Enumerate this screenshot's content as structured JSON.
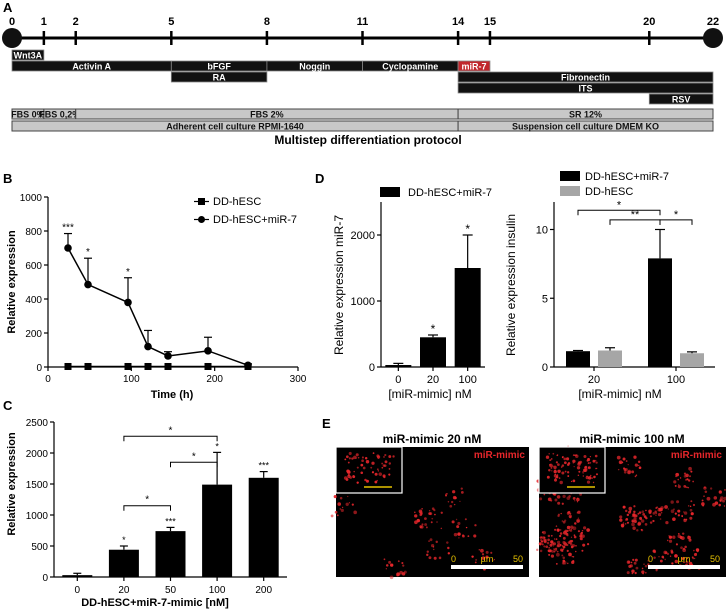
{
  "panel_letters": [
    "A",
    "B",
    "C",
    "D",
    "E"
  ],
  "protocol": {
    "title": "Multistep differentiation protocol",
    "timeline_days": [
      0,
      1,
      2,
      5,
      8,
      11,
      14,
      15,
      20,
      22
    ],
    "factor_bars": [
      {
        "label": "Wnt3A",
        "start": 0,
        "end": 1,
        "row": 0,
        "color": "#111111"
      },
      {
        "label": "Activin A",
        "start": 0,
        "end": 5,
        "row": 1,
        "color": "#111111"
      },
      {
        "label": "bFGF",
        "start": 5,
        "end": 8,
        "row": 1,
        "color": "#111111"
      },
      {
        "label": "RA",
        "start": 5,
        "end": 8,
        "row": 2,
        "color": "#111111"
      },
      {
        "label": "Noggin",
        "start": 8,
        "end": 11,
        "row": 1,
        "color": "#111111"
      },
      {
        "label": "Cyclopamine",
        "start": 11,
        "end": 14,
        "row": 1,
        "color": "#111111"
      },
      {
        "label": "miR-7",
        "start": 14,
        "end": 15,
        "row": 1,
        "color": "#c1272d"
      },
      {
        "label": "Fibronectin",
        "start": 14,
        "end": 22,
        "row": 2,
        "color": "#111111"
      },
      {
        "label": "ITS",
        "start": 14,
        "end": 22,
        "row": 3,
        "color": "#111111"
      },
      {
        "label": "RSV",
        "start": 20,
        "end": 22,
        "row": 4,
        "color": "#111111"
      }
    ],
    "media_bars": [
      {
        "label": "FBS 0%",
        "start": 0,
        "end": 1,
        "row": 0
      },
      {
        "label": "FBS 0,2%",
        "start": 1,
        "end": 2,
        "row": 0
      },
      {
        "label": "FBS 2%",
        "start": 2,
        "end": 14,
        "row": 0
      },
      {
        "label": "SR 12%",
        "start": 14,
        "end": 22,
        "row": 0
      },
      {
        "label": "Adherent cell culture RPMI-1640",
        "start": 0,
        "end": 14,
        "row": 1
      },
      {
        "label": "Suspension cell culture DMEM KO",
        "start": 14,
        "end": 22,
        "row": 1
      }
    ]
  },
  "chart_data": [
    {
      "panel": "B",
      "type": "line",
      "xlabel": "Time (h)",
      "ylabel": "Relative expression",
      "xlim": [
        0,
        300
      ],
      "ylim": [
        0,
        1000
      ],
      "xticks": [
        0,
        100,
        200,
        300
      ],
      "yticks": [
        0,
        200,
        400,
        600,
        800,
        1000
      ],
      "legend_position": "top-right",
      "series": [
        {
          "name": "DD-hESC",
          "marker": "square",
          "x": [
            24,
            48,
            96,
            120,
            144,
            192,
            240
          ],
          "y": [
            3,
            3,
            3,
            3,
            3,
            3,
            3
          ]
        },
        {
          "name": "DD-hESC+miR-7",
          "marker": "circle",
          "x": [
            24,
            48,
            96,
            120,
            144,
            192,
            240
          ],
          "y": [
            700,
            485,
            380,
            120,
            65,
            95,
            10
          ],
          "error": [
            85,
            155,
            145,
            95,
            25,
            80,
            8
          ]
        }
      ],
      "annotations": [
        {
          "x": 24,
          "label": "***"
        },
        {
          "x": 48,
          "label": "*"
        },
        {
          "x": 96,
          "label": "*"
        }
      ]
    },
    {
      "panel": "C",
      "type": "bar",
      "xlabel": "DD-hESC+miR-7-mimic [nM]",
      "ylabel": "Relative expression",
      "ylim": [
        0,
        2500
      ],
      "yticks": [
        0,
        500,
        1000,
        1500,
        2000,
        2500
      ],
      "categories": [
        "0",
        "20",
        "50",
        "100",
        "200"
      ],
      "values": [
        30,
        440,
        740,
        1490,
        1600
      ],
      "errors": [
        30,
        60,
        60,
        520,
        100
      ],
      "bar_labels": [
        "",
        "*",
        "***",
        "*",
        "***"
      ],
      "significance_brackets": [
        {
          "from": "20",
          "to": "50",
          "label": "*"
        },
        {
          "from": "50",
          "to": "100",
          "label": "*"
        },
        {
          "from": "20",
          "to": "100",
          "label": "*"
        }
      ]
    },
    {
      "panel": "D-left",
      "type": "bar",
      "xlabel": "[miR-mimic] nM",
      "ylabel": "Relative expression miR-7",
      "ylim": [
        0,
        2500
      ],
      "yticks": [
        0,
        1000,
        2000
      ],
      "legend_position": "top",
      "series": [
        {
          "name": "DD-hESC+miR-7",
          "color": "#000000"
        }
      ],
      "categories": [
        "0",
        "20",
        "100"
      ],
      "values": [
        30,
        450,
        1500
      ],
      "errors": [
        25,
        35,
        500
      ],
      "bar_labels": [
        "",
        "*",
        "*"
      ]
    },
    {
      "panel": "D-right",
      "type": "bar",
      "xlabel": "[miR-mimic] nM",
      "ylabel": "Relative expression insulin",
      "ylim": [
        0,
        12
      ],
      "yticks": [
        0,
        5,
        10
      ],
      "legend_position": "top",
      "categories": [
        "20",
        "100"
      ],
      "series": [
        {
          "name": "DD-hESC+miR-7",
          "color": "#000000",
          "values": [
            1.15,
            7.9
          ],
          "errors": [
            0.05,
            2.1
          ]
        },
        {
          "name": "DD-hESC",
          "color": "#a6a6a6",
          "values": [
            1.2,
            1.0
          ],
          "errors": [
            0.2,
            0.1
          ]
        }
      ],
      "significance_brackets": [
        {
          "from": "20 DD-hESC+miR-7",
          "to": "100 DD-hESC+miR-7",
          "label": "*"
        },
        {
          "from": "20 DD-hESC",
          "to": "100 DD-hESC+miR-7",
          "label": "**"
        },
        {
          "from": "100 DD-hESC+miR-7",
          "to": "100 DD-hESC",
          "label": "*"
        }
      ]
    }
  ],
  "microscopy": [
    {
      "title": "miR-mimic 20 nM",
      "tag": "miR-mimic",
      "scale_start": "0",
      "scale_unit": "µm",
      "scale_end": "50",
      "signal_color": "#e6262b"
    },
    {
      "title": "miR-mimic 100 nM",
      "tag": "miR-mimic",
      "scale_start": "0",
      "scale_unit": "µm",
      "scale_end": "50",
      "signal_color": "#e6262b"
    }
  ]
}
